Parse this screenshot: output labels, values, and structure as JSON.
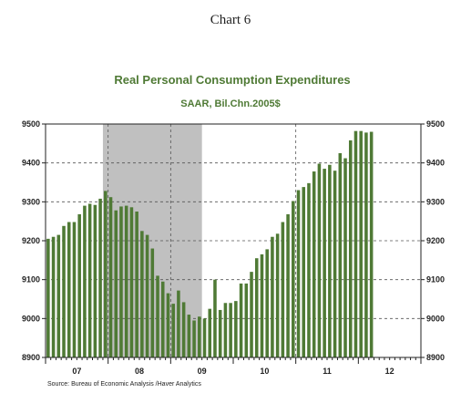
{
  "page_title": "Chart 6",
  "chart_data": {
    "type": "bar",
    "title": "Real Personal Consumption Expenditures",
    "subtitle": "SAAR, Bil.Chn.2005$",
    "source": "Source:  Bureau of Economic Analysis /Haver Analytics",
    "ylim": [
      8900,
      9500
    ],
    "yticks": [
      8900,
      9000,
      9100,
      9200,
      9300,
      9400,
      9500
    ],
    "grid": true,
    "bar_color": "#4f7a35",
    "recession_color": "#c0c0c0",
    "start_month": "2007-01",
    "xlim_months": 72,
    "xtick_labels": [
      "07",
      "08",
      "09",
      "10",
      "11",
      "12"
    ],
    "recession": {
      "start": "2007-12",
      "end": "2009-06"
    },
    "values": [
      9205,
      9210,
      9215,
      9238,
      9248,
      9248,
      9268,
      9290,
      9295,
      9292,
      9308,
      9328,
      9312,
      9278,
      9288,
      9290,
      9286,
      9275,
      9225,
      9215,
      9180,
      9110,
      9095,
      9065,
      9038,
      9072,
      9042,
      9010,
      8995,
      9005,
      9000,
      9025,
      9100,
      9022,
      9040,
      9040,
      9045,
      9090,
      9090,
      9120,
      9155,
      9165,
      9178,
      9210,
      9218,
      9248,
      9268,
      9302,
      9330,
      9338,
      9348,
      9378,
      9398,
      9385,
      9395,
      9380,
      9425,
      9412,
      9458,
      9482,
      9482,
      9478,
      9480
    ]
  }
}
